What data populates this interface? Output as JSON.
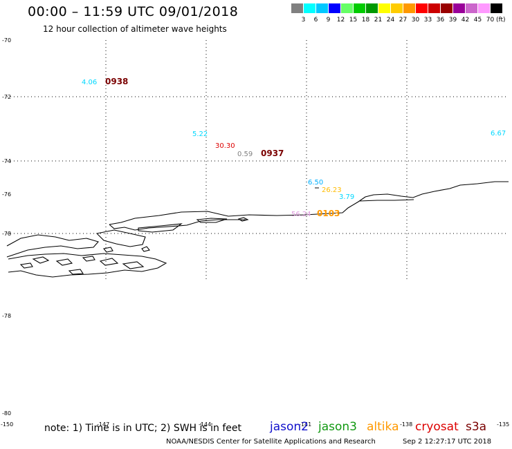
{
  "header": {
    "title": "00:00 – 11:59 UTC 09/01/2018",
    "subtitle": "12 hour collection of altimeter wave heights"
  },
  "color_scale": {
    "swatches": [
      {
        "label": "3",
        "color": "#808080"
      },
      {
        "label": "6",
        "color": "#00ffff"
      },
      {
        "label": "9",
        "color": "#00c8ff"
      },
      {
        "label": "12",
        "color": "#0000ff"
      },
      {
        "label": "15",
        "color": "#66ff66"
      },
      {
        "label": "18",
        "color": "#00cc00"
      },
      {
        "label": "21",
        "color": "#009900"
      },
      {
        "label": "24",
        "color": "#ffff00"
      },
      {
        "label": "27",
        "color": "#ffcc00"
      },
      {
        "label": "30",
        "color": "#ff9900"
      },
      {
        "label": "33",
        "color": "#ff0000"
      },
      {
        "label": "36",
        "color": "#cc0000"
      },
      {
        "label": "39",
        "color": "#990000"
      },
      {
        "label": "42",
        "color": "#990099"
      },
      {
        "label": "45",
        "color": "#cc66cc"
      },
      {
        "label": "70",
        "color": "#ff99ff"
      },
      {
        "label": "",
        "color": "#000000"
      }
    ],
    "unit": "(ft)"
  },
  "axes": {
    "lat_labels": [
      "-70",
      "-72",
      "-74",
      "-76",
      "-78",
      "-78",
      "-80"
    ],
    "lon_labels": [
      "-150",
      "-147",
      "-144",
      "-141",
      "-138",
      "-135"
    ]
  },
  "observations": [
    {
      "text": "4.06",
      "color": "#00d8ff",
      "kind": "value"
    },
    {
      "text": "0938",
      "color": "#7a0000",
      "kind": "time"
    },
    {
      "text": "5.22",
      "color": "#00d8ff",
      "kind": "value"
    },
    {
      "text": "30.30",
      "color": "#dd0000",
      "kind": "value"
    },
    {
      "text": "0.59",
      "color": "#808080",
      "kind": "value"
    },
    {
      "text": "0937",
      "color": "#7a0000",
      "kind": "time"
    },
    {
      "text": "6.67",
      "color": "#00d8ff",
      "kind": "value"
    },
    {
      "text": "6.50",
      "color": "#00b0ff",
      "kind": "value"
    },
    {
      "text": "26.23",
      "color": "#ffbb00",
      "kind": "value"
    },
    {
      "text": "3.79",
      "color": "#00d8ff",
      "kind": "value"
    },
    {
      "text": "56.24",
      "color": "#dd99dd",
      "kind": "value"
    },
    {
      "text": "0103",
      "color": "#ff9900",
      "kind": "time"
    }
  ],
  "note": "note: 1) Time is in UTC; 2) SWH is in feet",
  "satellites": [
    {
      "name": "jason2",
      "color": "#1010cc"
    },
    {
      "name": "jason3",
      "color": "#119911"
    },
    {
      "name": "altika",
      "color": "#ff9900"
    },
    {
      "name": "cryosat",
      "color": "#dd0000"
    },
    {
      "name": "s3a",
      "color": "#7a0000"
    }
  ],
  "footer": {
    "credit": "NOAA/NESDIS Center for Satellite Applications and Research",
    "timestamp": "Sep  2 12:27:17 UTC 2018"
  }
}
